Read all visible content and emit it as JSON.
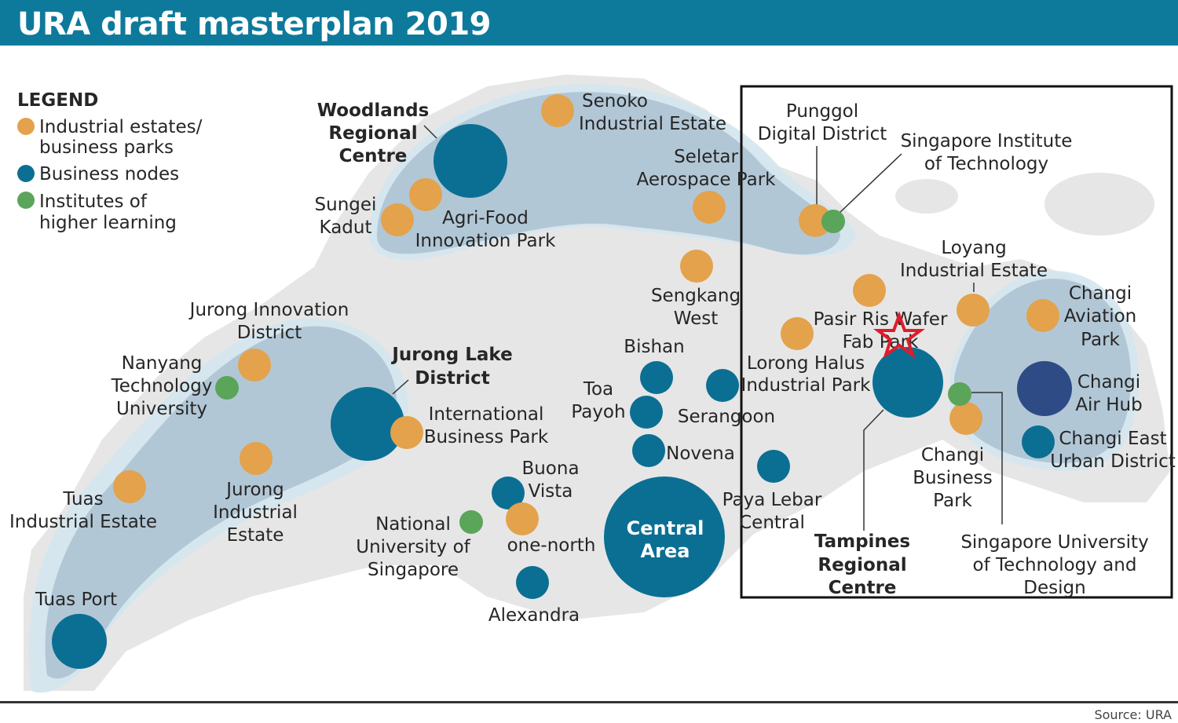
{
  "title": "URA draft masterplan 2019",
  "source": "Source: URA",
  "colors": {
    "header": "#0e7a9b",
    "industrial": "#e3a24b",
    "business": "#0b6f93",
    "institute": "#5aa55a",
    "airhub": "#2f4b86",
    "corridor": "#a9bfd0",
    "land": "#e6e6e6",
    "highlight": "#e01b2a"
  },
  "legend": {
    "heading": "LEGEND",
    "items": [
      {
        "lines": [
          "Industrial estates/",
          "business parks"
        ],
        "color": "#e3a24b"
      },
      {
        "lines": [
          "Business nodes"
        ],
        "color": "#0b6f93"
      },
      {
        "lines": [
          "Institutes of",
          "higher learning"
        ],
        "color": "#5aa55a"
      }
    ]
  },
  "labels": {
    "woodlands": [
      "Woodlands",
      "Regional",
      "Centre"
    ],
    "senoko": [
      "Senoko",
      "Industrial Estate"
    ],
    "sungei": [
      "Sungei",
      "Kadut"
    ],
    "agrifood": [
      "Agri-Food",
      "Innovation Park"
    ],
    "seletar": [
      "Seletar",
      "Aerospace Park"
    ],
    "punggol": [
      "Punggol",
      "Digital District"
    ],
    "sit": [
      "Singapore Institute",
      "of Technology"
    ],
    "loyang": [
      "Loyang",
      "Industrial Estate"
    ],
    "sengkang": [
      "Sengkang",
      "West"
    ],
    "pasir": [
      "Pasir Ris Wafer",
      "Fab Park"
    ],
    "changi_aviation": [
      "Changi",
      "Aviation",
      "Park"
    ],
    "lorong": [
      "Lorong Halus",
      "Industrial Park"
    ],
    "changi_airhub": [
      "Changi",
      "Air Hub"
    ],
    "changi_east": [
      "Changi East",
      "Urban District"
    ],
    "changi_business": [
      "Changi",
      "Business",
      "Park"
    ],
    "tampines": [
      "Tampines",
      "Regional",
      "Centre"
    ],
    "sutd": [
      "Singapore University",
      "of Technology and",
      "Design"
    ],
    "jid": [
      "Jurong Innovation",
      "District"
    ],
    "ntu": [
      "Nanyang",
      "Technology",
      "University"
    ],
    "jld": [
      "Jurong Lake",
      "District"
    ],
    "ibp": [
      "International",
      "Business Park"
    ],
    "bishan": [
      "Bishan"
    ],
    "toapayoh": [
      "Toa",
      "Payoh"
    ],
    "serangoon": [
      "Serangoon"
    ],
    "novena": [
      "Novena"
    ],
    "tuas_ie": [
      "Tuas",
      "Industrial Estate"
    ],
    "jurong_ie": [
      "Jurong",
      "Industrial",
      "Estate"
    ],
    "buona": [
      "Buona",
      "Vista"
    ],
    "nus": [
      "National",
      "University of",
      "Singapore"
    ],
    "onenorth": [
      "one-north"
    ],
    "central": [
      "Central",
      "Area"
    ],
    "paya": [
      "Paya Lebar",
      "Central"
    ],
    "alexandra": [
      "Alexandra"
    ],
    "tuas_port": [
      "Tuas Port"
    ]
  }
}
